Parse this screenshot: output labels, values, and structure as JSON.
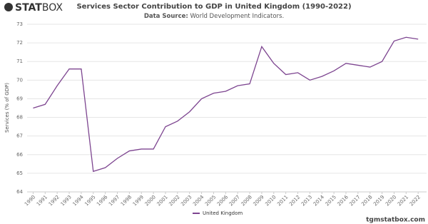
{
  "logo": {
    "part1": "STAT",
    "part2": "BOX"
  },
  "footer": "tgmstatbox.com",
  "chart_data": {
    "type": "line",
    "title": "Services Sector Contribution to GDP in United Kingdom (1990-2022)",
    "subtitle_label": "Data Source:",
    "subtitle": "World Development Indicators.",
    "y_label": "Services (% of GDP)",
    "x": [
      1990,
      1991,
      1992,
      1993,
      1994,
      1995,
      1996,
      1997,
      1998,
      1999,
      2000,
      2001,
      2002,
      2003,
      2004,
      2005,
      2006,
      2007,
      2008,
      2009,
      2010,
      2011,
      2012,
      2013,
      2014,
      2015,
      2016,
      2017,
      2018,
      2019,
      2020,
      2021,
      2022
    ],
    "series": [
      {
        "name": "United Kingdom",
        "color": "#7d4590",
        "values": [
          68.5,
          68.7,
          69.7,
          70.6,
          70.6,
          65.1,
          65.3,
          65.8,
          66.2,
          66.3,
          66.3,
          67.5,
          67.8,
          68.3,
          69.0,
          69.3,
          69.4,
          69.7,
          69.8,
          71.8,
          70.9,
          70.3,
          70.4,
          70.0,
          70.2,
          70.5,
          70.9,
          70.8,
          70.7,
          71.0,
          72.1,
          72.3,
          72.2
        ]
      }
    ],
    "xlim": [
      1989.5,
      2022.7
    ],
    "xticks": [
      1990,
      1991,
      1992,
      1993,
      1994,
      1995,
      1996,
      1997,
      1998,
      1999,
      2000,
      2001,
      2002,
      2003,
      2004,
      2005,
      2006,
      2007,
      2008,
      2009,
      2010,
      2011,
      2012,
      2013,
      2014,
      2015,
      2016,
      2017,
      2018,
      2019,
      2020,
      2021,
      2022
    ],
    "ylim": [
      64,
      73
    ],
    "yticks": [
      64,
      65,
      66,
      67,
      68,
      69,
      70,
      71,
      72,
      73
    ],
    "grid": true
  }
}
